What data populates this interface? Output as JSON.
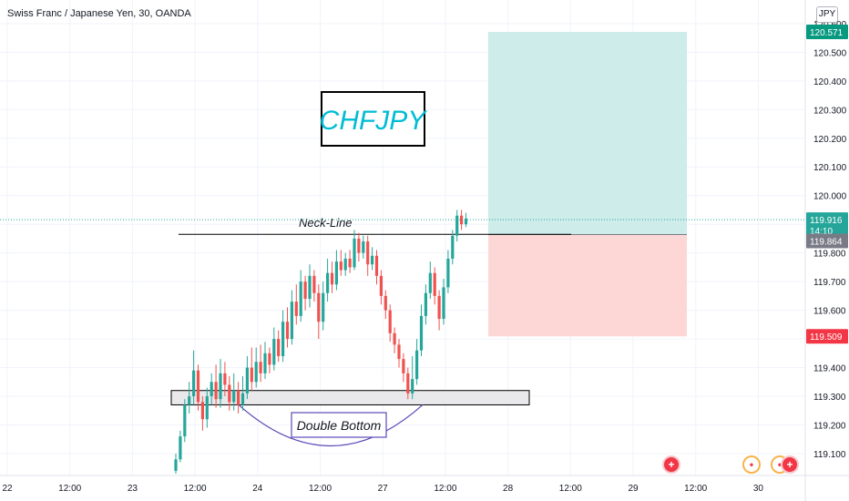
{
  "header": {
    "title": "Swiss Franc / Japanese Yen, 30, OANDA"
  },
  "price_axis": {
    "unit_label": "JPY"
  },
  "colors": {
    "up": "#26a69a",
    "down": "#ef5350",
    "target_zone": "#cdecea",
    "stop_zone": "#fdd7d6",
    "current_line": "#26a69a",
    "label_target": "#089981",
    "label_current": "#26a69a",
    "label_entry": "#787b86",
    "label_stop": "#f23645"
  },
  "chart_data": {
    "type": "candlestick",
    "title": "CHFJPY",
    "y_ticks": [
      "119.100",
      "119.200",
      "119.300",
      "119.400",
      "119.500",
      "119.600",
      "119.700",
      "119.800",
      "119.900",
      "120.000",
      "120.100",
      "120.200",
      "120.300",
      "120.400",
      "120.500",
      "120.600"
    ],
    "x_ticks": [
      "22",
      "12:00",
      "23",
      "12:00",
      "24",
      "12:00",
      "27",
      "12:00",
      "28",
      "12:00",
      "29",
      "12:00",
      "30"
    ],
    "ylim": [
      119.03,
      120.66
    ],
    "price_labels": {
      "target": "120.571",
      "current": "119.916",
      "countdown": "14:10",
      "entry": "119.864",
      "stop": "119.509"
    },
    "annotations": {
      "neckline": "Neck-Line",
      "pattern": "Double Bottom"
    },
    "position": {
      "target": 120.571,
      "entry": 119.864,
      "stop": 119.509,
      "current": 119.916,
      "neckline": 119.865,
      "support_low": 119.27,
      "support_high": 119.32
    },
    "candles": [
      [
        119.04,
        119.08,
        119.03,
        119.1
      ],
      [
        119.08,
        119.16,
        119.07,
        119.18
      ],
      [
        119.16,
        119.27,
        119.14,
        119.29
      ],
      [
        119.27,
        119.3,
        119.24,
        119.35
      ],
      [
        119.3,
        119.39,
        119.27,
        119.46
      ],
      [
        119.39,
        119.28,
        119.25,
        119.41
      ],
      [
        119.28,
        119.22,
        119.18,
        119.3
      ],
      [
        119.22,
        119.3,
        119.19,
        119.33
      ],
      [
        119.3,
        119.35,
        119.27,
        119.38
      ],
      [
        119.35,
        119.29,
        119.26,
        119.41
      ],
      [
        119.29,
        119.38,
        119.26,
        119.43
      ],
      [
        119.38,
        119.34,
        119.3,
        119.42
      ],
      [
        119.34,
        119.28,
        119.25,
        119.37
      ],
      [
        119.28,
        119.32,
        119.25,
        119.38
      ],
      [
        119.32,
        119.27,
        119.24,
        119.35
      ],
      [
        119.27,
        119.31,
        119.25,
        119.37
      ],
      [
        119.31,
        119.4,
        119.29,
        119.44
      ],
      [
        119.4,
        119.35,
        119.32,
        119.47
      ],
      [
        119.35,
        119.42,
        119.33,
        119.47
      ],
      [
        119.42,
        119.38,
        119.35,
        119.48
      ],
      [
        119.38,
        119.45,
        119.36,
        119.49
      ],
      [
        119.45,
        119.41,
        119.38,
        119.47
      ],
      [
        119.41,
        119.5,
        119.39,
        119.54
      ],
      [
        119.5,
        119.44,
        119.42,
        119.53
      ],
      [
        119.44,
        119.56,
        119.42,
        119.6
      ],
      [
        119.56,
        119.5,
        119.47,
        119.61
      ],
      [
        119.5,
        119.63,
        119.48,
        119.67
      ],
      [
        119.63,
        119.58,
        119.55,
        119.69
      ],
      [
        119.58,
        119.7,
        119.56,
        119.74
      ],
      [
        119.7,
        119.64,
        119.6,
        119.72
      ],
      [
        119.64,
        119.72,
        119.61,
        119.76
      ],
      [
        119.72,
        119.66,
        119.63,
        119.74
      ],
      [
        119.66,
        119.56,
        119.5,
        119.69
      ],
      [
        119.56,
        119.66,
        119.53,
        119.7
      ],
      [
        119.66,
        119.73,
        119.63,
        119.78
      ],
      [
        119.73,
        119.69,
        119.66,
        119.77
      ],
      [
        119.69,
        119.77,
        119.67,
        119.81
      ],
      [
        119.77,
        119.74,
        119.72,
        119.81
      ],
      [
        119.74,
        119.78,
        119.72,
        119.8
      ],
      [
        119.78,
        119.75,
        119.73,
        119.81
      ],
      [
        119.75,
        119.85,
        119.74,
        119.88
      ],
      [
        119.85,
        119.8,
        119.77,
        119.87
      ],
      [
        119.8,
        119.84,
        119.78,
        119.86
      ],
      [
        119.84,
        119.76,
        119.72,
        119.86
      ],
      [
        119.76,
        119.79,
        119.74,
        119.82
      ],
      [
        119.79,
        119.72,
        119.69,
        119.81
      ],
      [
        119.72,
        119.65,
        119.62,
        119.74
      ],
      [
        119.65,
        119.6,
        119.57,
        119.67
      ],
      [
        119.6,
        119.52,
        119.49,
        119.62
      ],
      [
        119.52,
        119.48,
        119.45,
        119.54
      ],
      [
        119.48,
        119.43,
        119.4,
        119.5
      ],
      [
        119.43,
        119.38,
        119.35,
        119.45
      ],
      [
        119.38,
        119.31,
        119.29,
        119.4
      ],
      [
        119.31,
        119.36,
        119.29,
        119.44
      ],
      [
        119.36,
        119.46,
        119.34,
        119.5
      ],
      [
        119.46,
        119.58,
        119.44,
        119.62
      ],
      [
        119.58,
        119.66,
        119.55,
        119.69
      ],
      [
        119.66,
        119.73,
        119.64,
        119.77
      ],
      [
        119.73,
        119.65,
        119.62,
        119.75
      ],
      [
        119.65,
        119.57,
        119.53,
        119.67
      ],
      [
        119.57,
        119.68,
        119.55,
        119.71
      ],
      [
        119.68,
        119.78,
        119.66,
        119.81
      ],
      [
        119.78,
        119.86,
        119.76,
        119.88
      ],
      [
        119.86,
        119.93,
        119.84,
        119.95
      ],
      [
        119.93,
        119.9,
        119.88,
        119.95
      ],
      [
        119.9,
        119.92,
        119.89,
        119.94
      ]
    ]
  }
}
